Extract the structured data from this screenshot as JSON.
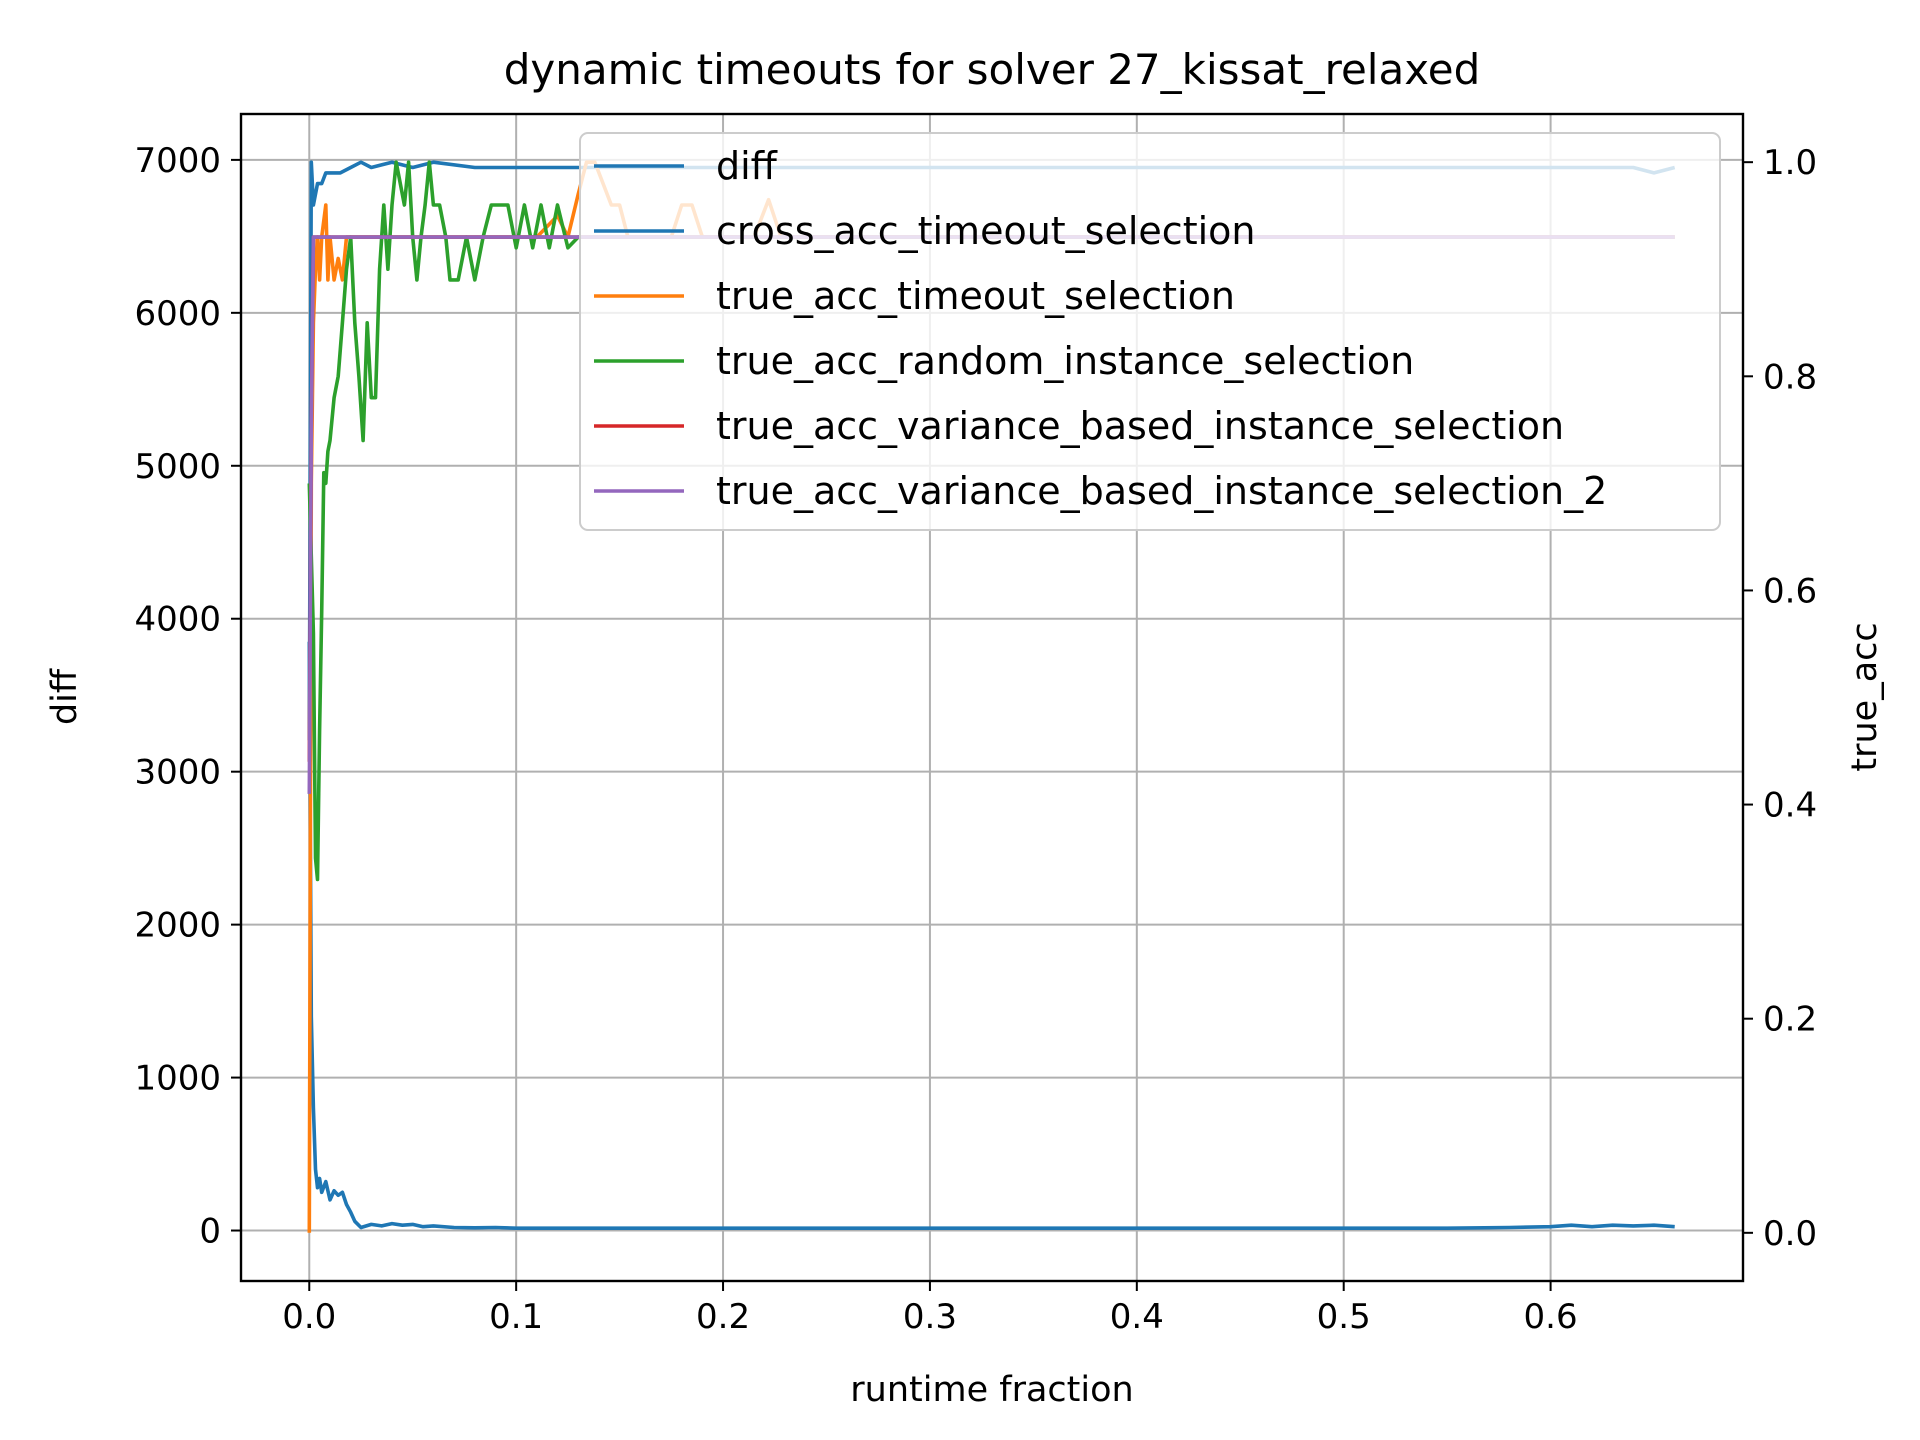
{
  "chart_data": {
    "type": "line",
    "title": "dynamic timeouts for solver 27_kissat_relaxed",
    "xlabel": "runtime fraction",
    "ylabel_left": "diff",
    "ylabel_right": "true_acc",
    "ylabel_left_color": "#008000",
    "ylabel_right_color": "#ff0000",
    "xlim": [
      -0.033,
      0.693
    ],
    "ylim_left": [
      -330,
      7300
    ],
    "ylim_right": [
      -0.045,
      1.045
    ],
    "x_ticks": [
      0.0,
      0.1,
      0.2,
      0.3,
      0.4,
      0.5,
      0.6
    ],
    "x_tick_labels": [
      "0.0",
      "0.1",
      "0.2",
      "0.3",
      "0.4",
      "0.5",
      "0.6"
    ],
    "y_left_ticks": [
      0,
      1000,
      2000,
      3000,
      4000,
      5000,
      6000,
      7000
    ],
    "y_left_tick_labels": [
      "0",
      "1000",
      "2000",
      "3000",
      "4000",
      "5000",
      "6000",
      "7000"
    ],
    "y_right_ticks": [
      0.0,
      0.2,
      0.4,
      0.6,
      0.8,
      1.0
    ],
    "y_right_tick_labels": [
      "0.0",
      "0.2",
      "0.4",
      "0.6",
      "0.8",
      "1.0"
    ],
    "grid": true,
    "legend_position": "upper right",
    "series": [
      {
        "name": "diff",
        "axis": "left",
        "color": "#1f77b4",
        "points": [
          [
            0.0,
            3850
          ],
          [
            0.001,
            1400
          ],
          [
            0.002,
            800
          ],
          [
            0.003,
            400
          ],
          [
            0.004,
            280
          ],
          [
            0.005,
            340
          ],
          [
            0.006,
            250
          ],
          [
            0.008,
            320
          ],
          [
            0.01,
            200
          ],
          [
            0.012,
            260
          ],
          [
            0.014,
            230
          ],
          [
            0.016,
            250
          ],
          [
            0.018,
            170
          ],
          [
            0.02,
            120
          ],
          [
            0.022,
            60
          ],
          [
            0.025,
            20
          ],
          [
            0.03,
            40
          ],
          [
            0.035,
            30
          ],
          [
            0.04,
            45
          ],
          [
            0.045,
            35
          ],
          [
            0.05,
            40
          ],
          [
            0.055,
            25
          ],
          [
            0.06,
            30
          ],
          [
            0.07,
            20
          ],
          [
            0.08,
            18
          ],
          [
            0.09,
            20
          ],
          [
            0.1,
            15
          ],
          [
            0.15,
            15
          ],
          [
            0.2,
            15
          ],
          [
            0.25,
            15
          ],
          [
            0.3,
            15
          ],
          [
            0.35,
            15
          ],
          [
            0.4,
            15
          ],
          [
            0.45,
            15
          ],
          [
            0.5,
            15
          ],
          [
            0.55,
            15
          ],
          [
            0.58,
            20
          ],
          [
            0.6,
            25
          ],
          [
            0.61,
            35
          ],
          [
            0.62,
            25
          ],
          [
            0.63,
            35
          ],
          [
            0.64,
            30
          ],
          [
            0.65,
            35
          ],
          [
            0.66,
            25
          ]
        ]
      },
      {
        "name": "cross_acc_timeout_selection",
        "axis": "right",
        "color": "#1f77b4",
        "points": [
          [
            0.0,
            0.46
          ],
          [
            0.001,
            1.0
          ],
          [
            0.002,
            0.96
          ],
          [
            0.004,
            0.98
          ],
          [
            0.006,
            0.98
          ],
          [
            0.008,
            0.99
          ],
          [
            0.01,
            0.99
          ],
          [
            0.015,
            0.99
          ],
          [
            0.02,
            0.995
          ],
          [
            0.025,
            1.0
          ],
          [
            0.03,
            0.995
          ],
          [
            0.04,
            1.0
          ],
          [
            0.05,
            0.995
          ],
          [
            0.06,
            1.0
          ],
          [
            0.08,
            0.995
          ],
          [
            0.1,
            0.995
          ],
          [
            0.15,
            0.995
          ],
          [
            0.2,
            0.995
          ],
          [
            0.25,
            0.995
          ],
          [
            0.3,
            0.995
          ],
          [
            0.35,
            0.995
          ],
          [
            0.4,
            0.995
          ],
          [
            0.45,
            0.995
          ],
          [
            0.5,
            0.995
          ],
          [
            0.55,
            0.995
          ],
          [
            0.6,
            0.995
          ],
          [
            0.64,
            0.995
          ],
          [
            0.65,
            0.99
          ],
          [
            0.66,
            0.995
          ]
        ]
      },
      {
        "name": "true_acc_timeout_selection",
        "axis": "right",
        "color": "#ff7f0e",
        "points": [
          [
            0.0,
            0.0
          ],
          [
            0.001,
            0.7
          ],
          [
            0.002,
            0.85
          ],
          [
            0.003,
            0.9
          ],
          [
            0.004,
            0.93
          ],
          [
            0.005,
            0.89
          ],
          [
            0.006,
            0.93
          ],
          [
            0.008,
            0.96
          ],
          [
            0.009,
            0.89
          ],
          [
            0.01,
            0.93
          ],
          [
            0.012,
            0.89
          ],
          [
            0.014,
            0.91
          ],
          [
            0.016,
            0.89
          ],
          [
            0.018,
            0.93
          ],
          [
            0.02,
            0.93
          ],
          [
            0.1,
            0.93
          ],
          [
            0.11,
            0.93
          ],
          [
            0.12,
            0.95
          ],
          [
            0.125,
            0.93
          ],
          [
            0.13,
            0.97
          ],
          [
            0.134,
            1.0
          ],
          [
            0.138,
            1.0
          ],
          [
            0.142,
            0.98
          ],
          [
            0.146,
            0.96
          ],
          [
            0.15,
            0.96
          ],
          [
            0.154,
            0.93
          ],
          [
            0.17,
            0.93
          ],
          [
            0.175,
            0.93
          ],
          [
            0.18,
            0.96
          ],
          [
            0.185,
            0.96
          ],
          [
            0.19,
            0.93
          ],
          [
            0.2,
            0.93
          ],
          [
            0.21,
            0.93
          ],
          [
            0.215,
            0.93
          ],
          [
            0.222,
            0.965
          ],
          [
            0.228,
            0.93
          ],
          [
            0.66,
            0.93
          ]
        ]
      },
      {
        "name": "true_acc_random_instance_selection",
        "axis": "right",
        "color": "#2ca02c",
        "points": [
          [
            0.0,
            0.7
          ],
          [
            0.002,
            0.56
          ],
          [
            0.003,
            0.35
          ],
          [
            0.004,
            0.33
          ],
          [
            0.005,
            0.47
          ],
          [
            0.006,
            0.58
          ],
          [
            0.007,
            0.71
          ],
          [
            0.008,
            0.7
          ],
          [
            0.009,
            0.73
          ],
          [
            0.01,
            0.74
          ],
          [
            0.012,
            0.78
          ],
          [
            0.014,
            0.8
          ],
          [
            0.016,
            0.85
          ],
          [
            0.018,
            0.9
          ],
          [
            0.02,
            0.93
          ],
          [
            0.022,
            0.85
          ],
          [
            0.024,
            0.8
          ],
          [
            0.026,
            0.74
          ],
          [
            0.028,
            0.85
          ],
          [
            0.03,
            0.78
          ],
          [
            0.032,
            0.78
          ],
          [
            0.034,
            0.9
          ],
          [
            0.036,
            0.96
          ],
          [
            0.038,
            0.9
          ],
          [
            0.04,
            0.96
          ],
          [
            0.042,
            1.0
          ],
          [
            0.046,
            0.96
          ],
          [
            0.048,
            1.0
          ],
          [
            0.05,
            0.93
          ],
          [
            0.052,
            0.89
          ],
          [
            0.054,
            0.93
          ],
          [
            0.056,
            0.96
          ],
          [
            0.058,
            1.0
          ],
          [
            0.06,
            0.96
          ],
          [
            0.063,
            0.96
          ],
          [
            0.066,
            0.93
          ],
          [
            0.068,
            0.89
          ],
          [
            0.072,
            0.89
          ],
          [
            0.076,
            0.93
          ],
          [
            0.08,
            0.89
          ],
          [
            0.084,
            0.93
          ],
          [
            0.088,
            0.96
          ],
          [
            0.092,
            0.96
          ],
          [
            0.096,
            0.96
          ],
          [
            0.1,
            0.92
          ],
          [
            0.104,
            0.96
          ],
          [
            0.108,
            0.92
          ],
          [
            0.112,
            0.96
          ],
          [
            0.116,
            0.92
          ],
          [
            0.12,
            0.96
          ],
          [
            0.125,
            0.92
          ],
          [
            0.13,
            0.93
          ],
          [
            0.66,
            0.93
          ]
        ]
      },
      {
        "name": "true_acc_variance_based_instance_selection",
        "axis": "right",
        "color": "#d62728",
        "points": [
          [
            0.0,
            0.44
          ],
          [
            0.001,
            0.75
          ],
          [
            0.002,
            0.93
          ],
          [
            0.66,
            0.93
          ]
        ]
      },
      {
        "name": "true_acc_variance_based_instance_selection_2",
        "axis": "right",
        "color": "#9467bd",
        "points": [
          [
            0.0,
            0.41
          ],
          [
            0.001,
            0.75
          ],
          [
            0.002,
            0.93
          ],
          [
            0.66,
            0.93
          ]
        ]
      }
    ]
  }
}
